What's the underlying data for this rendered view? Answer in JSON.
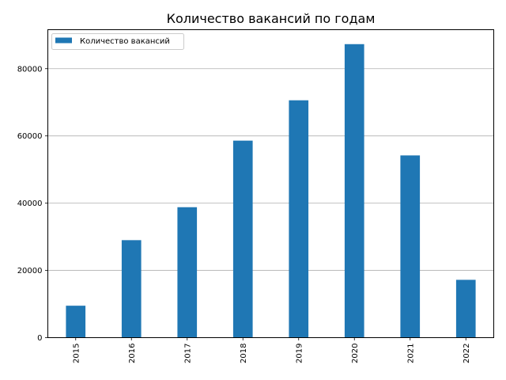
{
  "chart_data": {
    "type": "bar",
    "title": "Количество вакансий по годам",
    "categories": [
      "2015",
      "2016",
      "2017",
      "2018",
      "2019",
      "2020",
      "2021",
      "2022"
    ],
    "series": [
      {
        "name": "Количество вакансий",
        "color": "#1f77b4",
        "values": [
          9500,
          29000,
          38800,
          58600,
          70600,
          87300,
          54200,
          17200
        ]
      }
    ],
    "xlabel": "",
    "ylabel": "",
    "ylim": [
      0,
      91600
    ],
    "yticks": [
      0,
      20000,
      40000,
      60000,
      80000
    ],
    "ytick_labels": [
      "0",
      "20000",
      "40000",
      "60000",
      "80000"
    ],
    "grid": "y",
    "legend_position": "top-left"
  }
}
